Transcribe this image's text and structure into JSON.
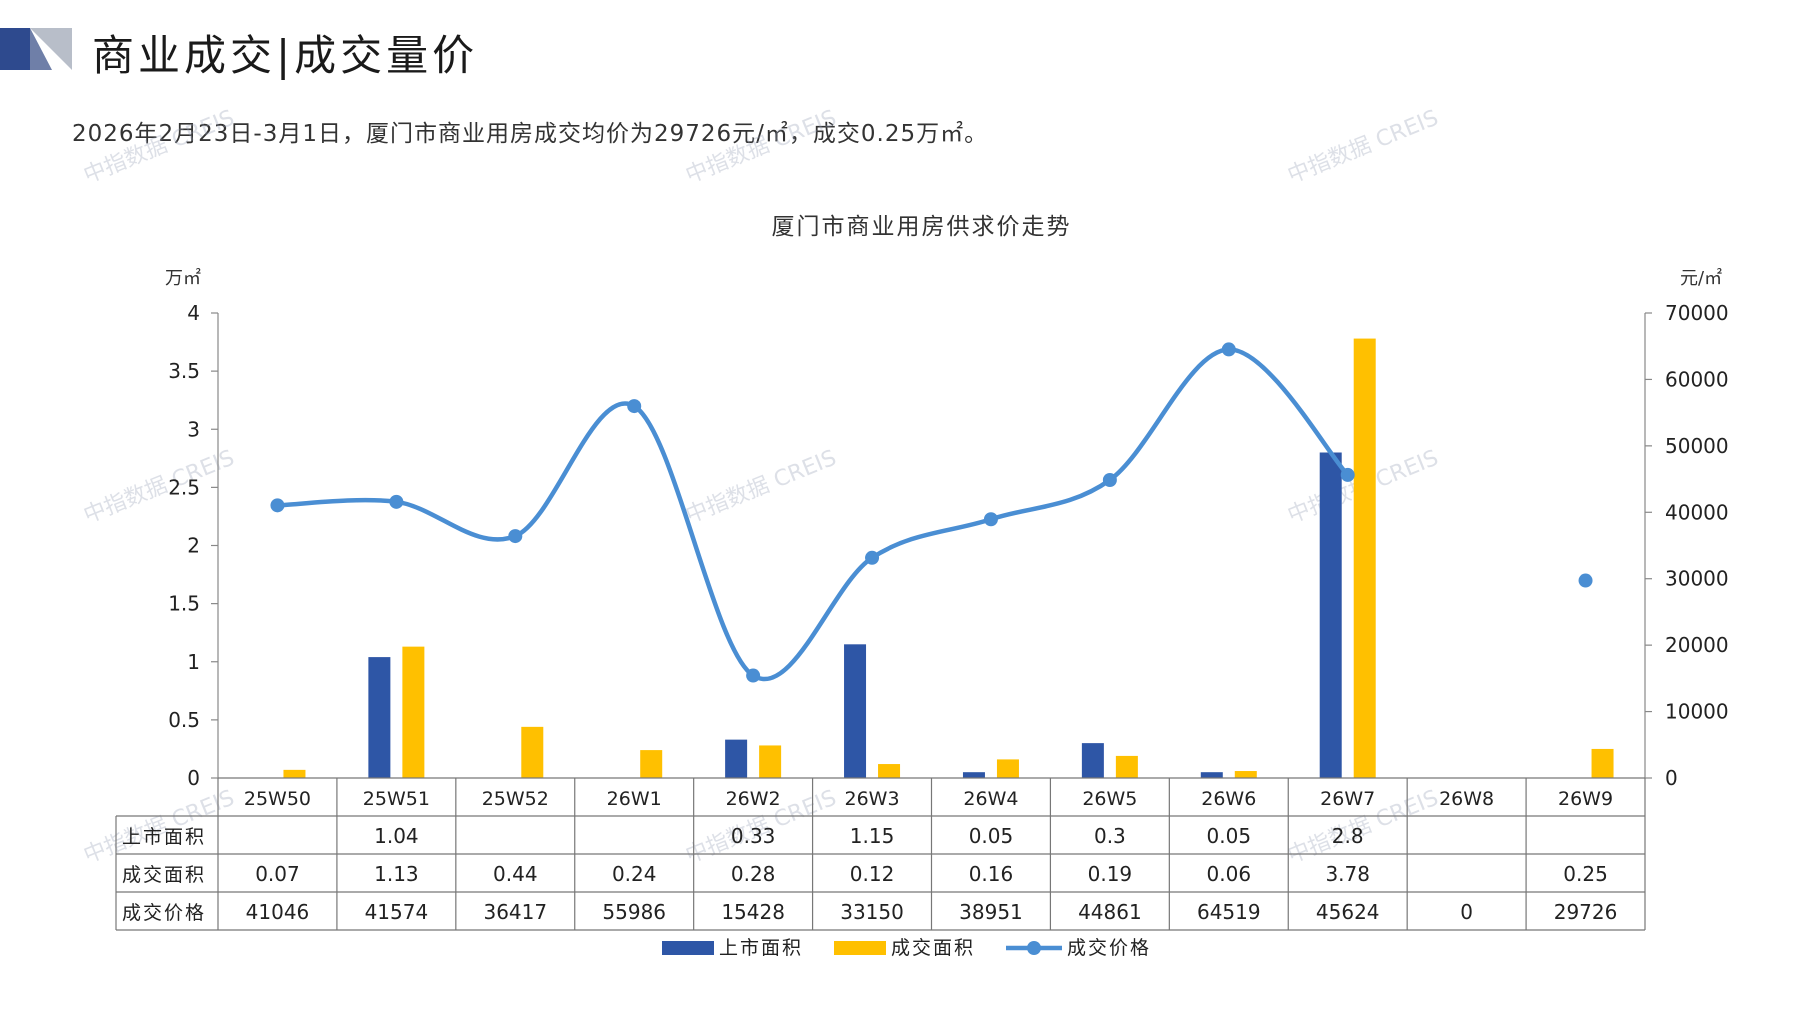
{
  "header": {
    "title": "商业成交|成交量价",
    "summary": "2026年2月23日-3月1日，厦门市商业用房成交均价为29726元/㎡，成交0.25万㎡。"
  },
  "watermark_text": "中指数据 CREIS",
  "colors": {
    "supply": "#2E56A6",
    "deal": "#FFC000",
    "price": "#4A8ED3",
    "logo_dark": "#2E4A8E",
    "logo_light": "#B8BEC9"
  },
  "chart_data": {
    "type": "bar",
    "title": "厦门市商业用房供求价走势",
    "y_left_unit": "万㎡",
    "y_right_unit": "元/㎡",
    "ylim_left": [
      0,
      4
    ],
    "ylim_right": [
      0,
      70000
    ],
    "left_ticks": [
      "4",
      "3.5",
      "3",
      "2.5",
      "2",
      "1.5",
      "1",
      "0.5",
      "0"
    ],
    "right_ticks": [
      "70000",
      "60000",
      "50000",
      "40000",
      "30000",
      "20000",
      "10000",
      "0"
    ],
    "categories": [
      "25W50",
      "25W51",
      "25W52",
      "26W1",
      "26W2",
      "26W3",
      "26W4",
      "26W5",
      "26W6",
      "26W7",
      "26W8",
      "26W9"
    ],
    "series": [
      {
        "name": "上市面积",
        "type": "bar",
        "values": [
          null,
          1.04,
          null,
          null,
          0.33,
          1.15,
          0.05,
          0.3,
          0.05,
          2.8,
          null,
          null
        ],
        "labels": [
          "",
          "1.04",
          "",
          "",
          "0.33",
          "1.15",
          "0.05",
          "0.3",
          "0.05",
          "2.8",
          "",
          ""
        ]
      },
      {
        "name": "成交面积",
        "type": "bar",
        "values": [
          0.07,
          1.13,
          0.44,
          0.24,
          0.28,
          0.12,
          0.16,
          0.19,
          0.06,
          3.78,
          null,
          0.25
        ],
        "labels": [
          "0.07",
          "1.13",
          "0.44",
          "0.24",
          "0.28",
          "0.12",
          "0.16",
          "0.19",
          "0.06",
          "3.78",
          "",
          "0.25"
        ]
      },
      {
        "name": "成交价格",
        "type": "line",
        "axis": "right",
        "values": [
          41046,
          41574,
          36417,
          55986,
          15428,
          33150,
          38951,
          44861,
          64519,
          45624,
          0,
          29726
        ],
        "labels": [
          "41046",
          "41574",
          "36417",
          "55986",
          "15428",
          "33150",
          "38951",
          "44861",
          "64519",
          "45624",
          "0",
          "29726"
        ]
      }
    ],
    "legend_position": "bottom",
    "grid": false
  }
}
